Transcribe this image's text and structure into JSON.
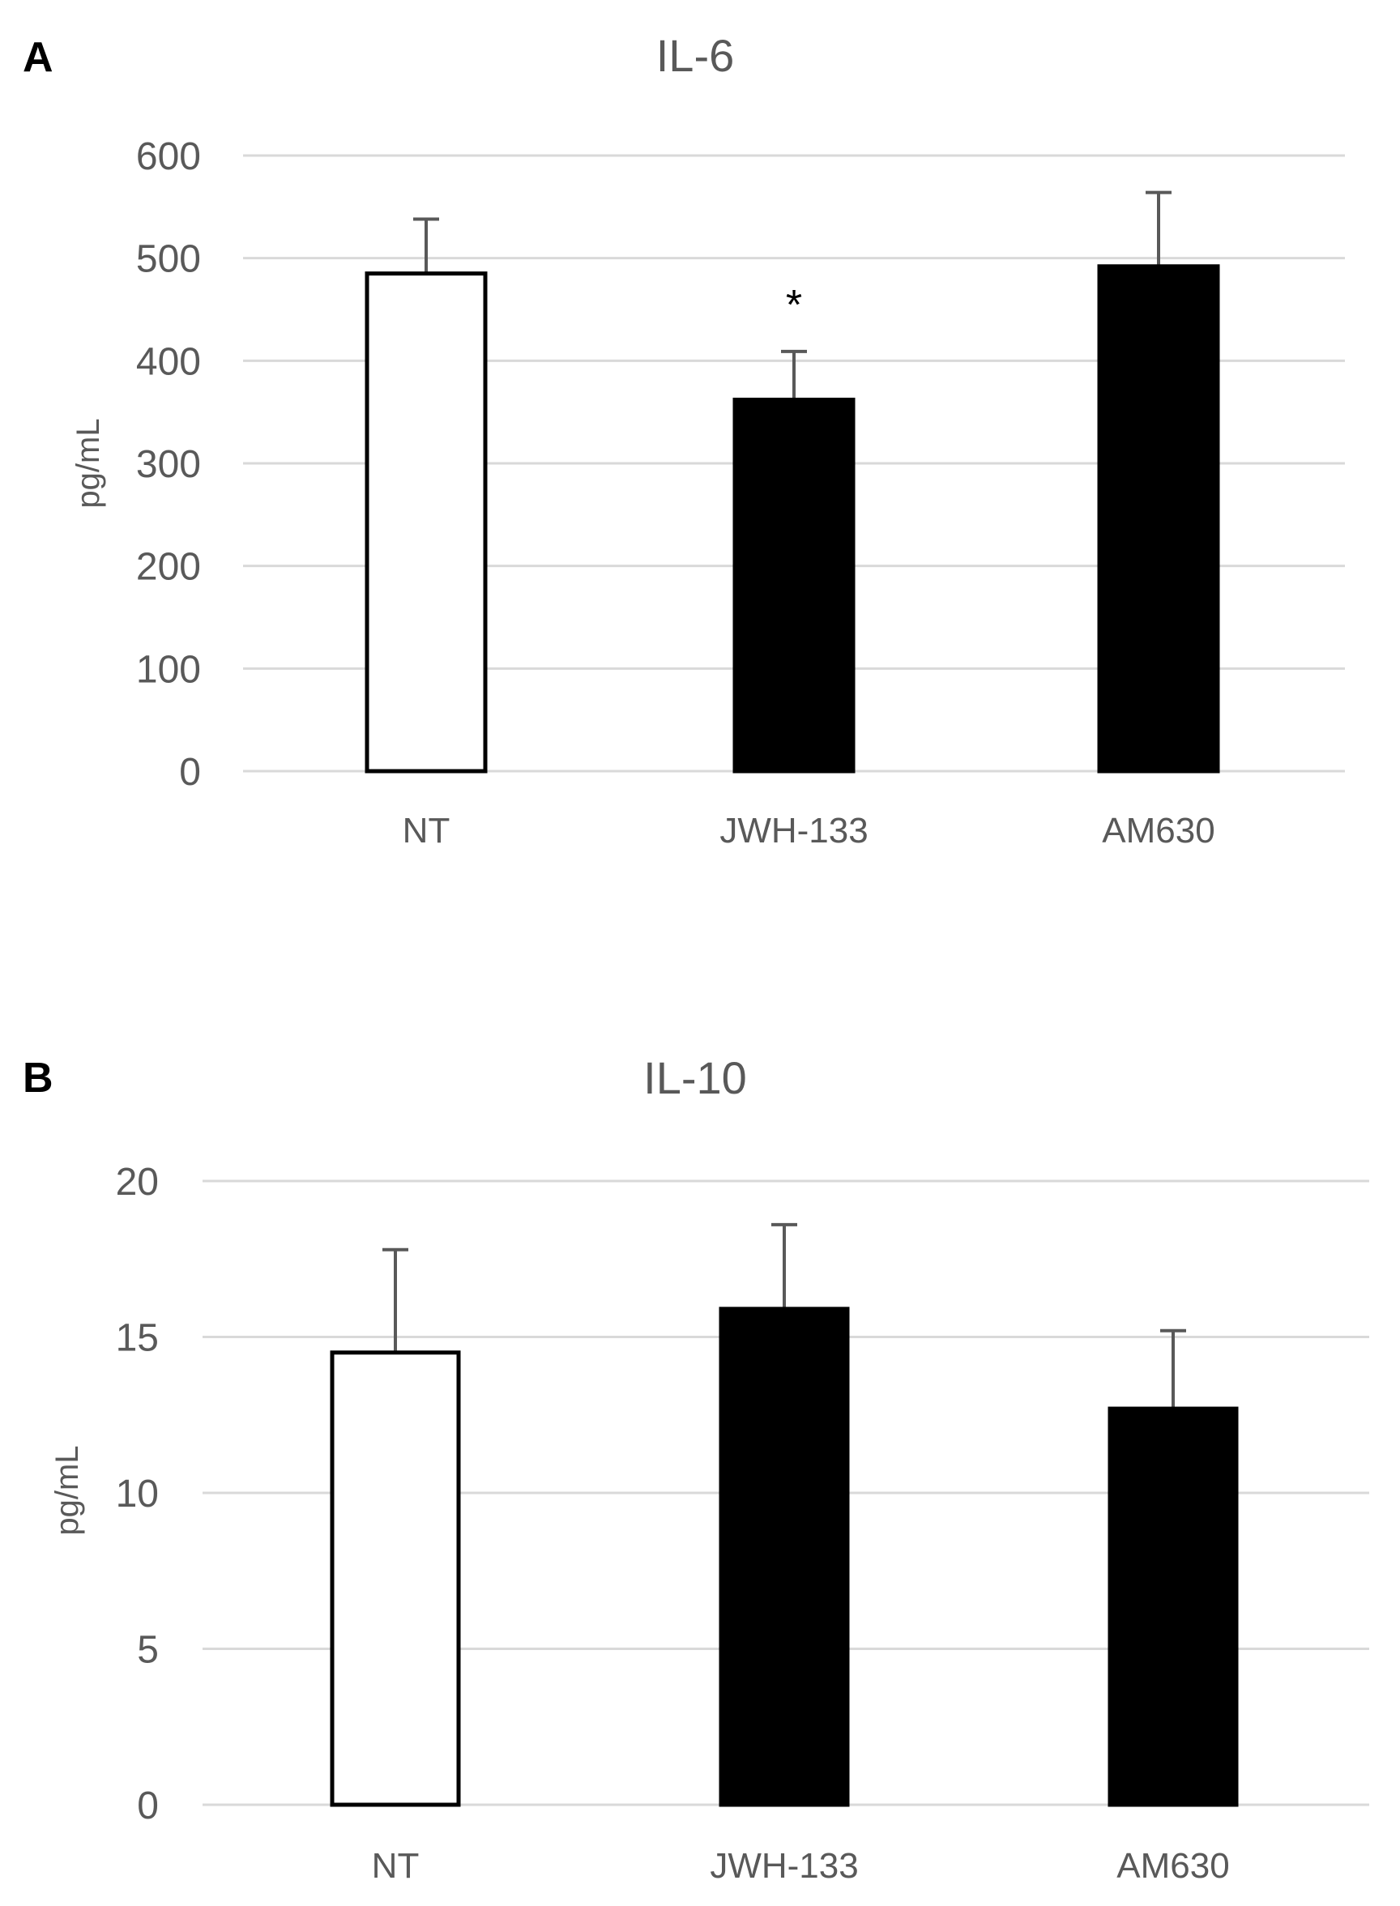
{
  "chart_data": [
    {
      "type": "bar",
      "panel": "A",
      "title": "IL-6",
      "ylabel": "pg/mL",
      "xlabel": "",
      "ylim": [
        0,
        600
      ],
      "yticks": [
        0,
        100,
        200,
        300,
        400,
        500,
        600
      ],
      "categories": [
        "NT",
        "JWH-133",
        "AM630"
      ],
      "values": [
        485,
        362,
        492
      ],
      "errors": [
        53,
        47,
        72
      ],
      "fills": [
        "#ffffff",
        "#000000",
        "#000000"
      ],
      "annotations": [
        "",
        "*",
        ""
      ],
      "grid": true
    },
    {
      "type": "bar",
      "panel": "B",
      "title": "IL-10",
      "ylabel": "pg/mL",
      "xlabel": "",
      "ylim": [
        0,
        20
      ],
      "yticks": [
        0,
        5,
        10,
        15,
        20
      ],
      "categories": [
        "NT",
        "JWH-133",
        "AM630"
      ],
      "values": [
        14.5,
        15.9,
        12.7
      ],
      "errors": [
        3.3,
        2.7,
        2.5
      ],
      "fills": [
        "#ffffff",
        "#000000",
        "#000000"
      ],
      "annotations": [
        "",
        "",
        ""
      ],
      "grid": true
    }
  ]
}
